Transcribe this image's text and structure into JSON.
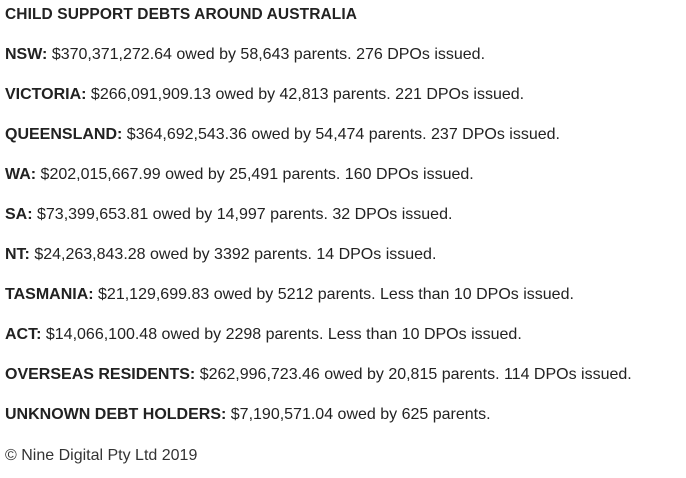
{
  "heading": "CHILD SUPPORT DEBTS AROUND AUSTRALIA",
  "rows": [
    {
      "label": "NSW:",
      "text": " $370,371,272.64 owed by 58,643 parents. 276 DPOs issued."
    },
    {
      "label": "VICTORIA:",
      "text": " $266,091,909.13 owed by 42,813 parents. 221 DPOs issued."
    },
    {
      "label": "QUEENSLAND:",
      "text": " $364,692,543.36 owed by 54,474 parents. 237 DPOs issued."
    },
    {
      "label": "WA:",
      "text": " $202,015,667.99 owed by 25,491 parents. 160 DPOs issued."
    },
    {
      "label": "SA:",
      "text": " $73,399,653.81 owed by 14,997 parents. 32 DPOs issued."
    },
    {
      "label": "NT:",
      "text": " $24,263,843.28 owed by 3392 parents. 14 DPOs issued."
    },
    {
      "label": "TASMANIA:",
      "text": " $21,129,699.83 owed by 5212 parents. Less than 10 DPOs issued."
    },
    {
      "label": "ACT:",
      "text": " $14,066,100.48 owed by 2298 parents. Less than 10 DPOs issued."
    },
    {
      "label": "OVERSEAS RESIDENTS:",
      "text": " $262,996,723.46 owed by 20,815 parents. 114 DPOs issued."
    },
    {
      "label": "UNKNOWN DEBT HOLDERS:",
      "text": " $7,190,571.04 owed by 625 parents."
    }
  ],
  "footer": "© Nine Digital Pty Ltd 2019"
}
